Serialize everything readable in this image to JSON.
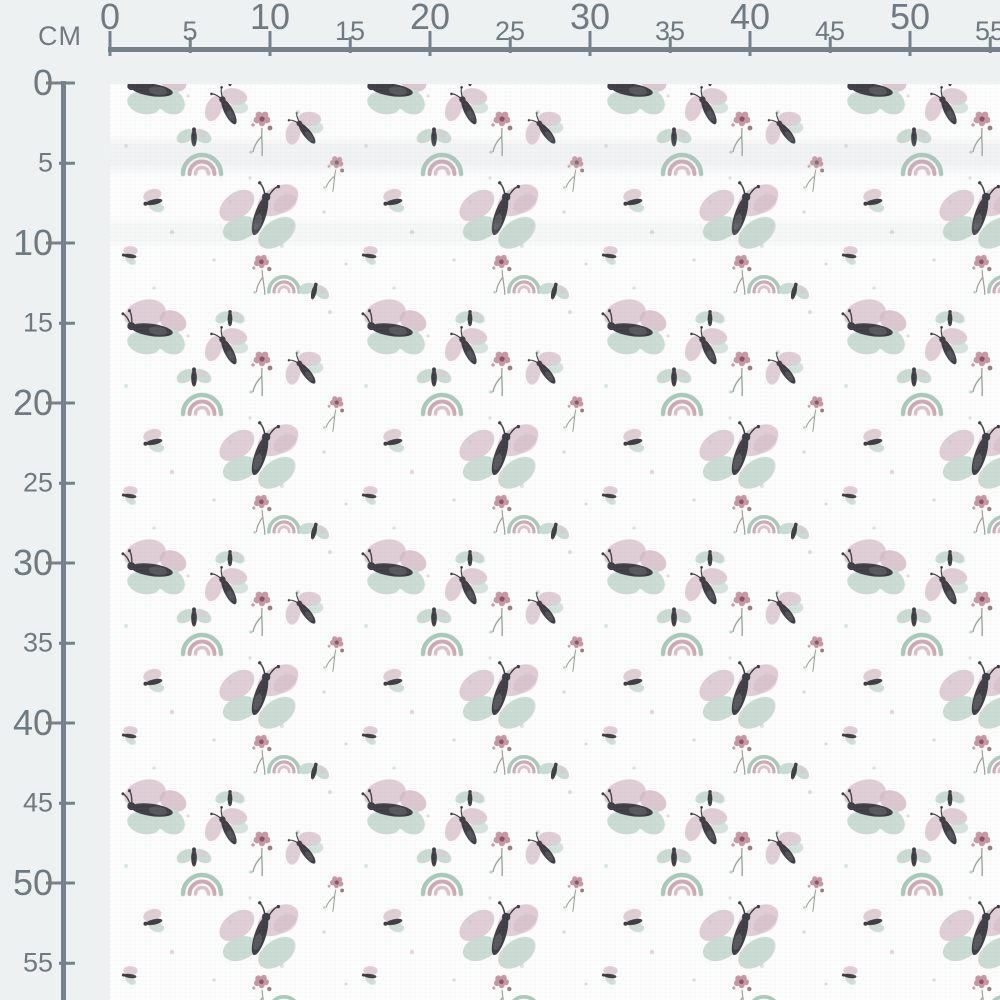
{
  "ruler": {
    "unit_label": "CM",
    "top": {
      "ticks": [
        0,
        5,
        10,
        15,
        20,
        25,
        30,
        35,
        40,
        45,
        50,
        55
      ]
    },
    "left": {
      "ticks": [
        0,
        5,
        10,
        15,
        20,
        25,
        30,
        35,
        40,
        45,
        50,
        55
      ]
    }
  },
  "fabric": {
    "base_color": "#fdfdfd",
    "motifs": [
      "butterfly-icon",
      "moth-icon",
      "small-butterfly-icon",
      "flower-icon",
      "rainbow-icon",
      "speckle-dot-icon"
    ]
  },
  "colors": {
    "background": "#edf1f2",
    "fabric": "#fdfdfd",
    "ruler_line": "#76828b",
    "ruler_text": "#6f7a82",
    "wing_pink": "#decbd4",
    "wing_pink_deep": "#d3b9c5",
    "wing_mint": "#c8dad1",
    "wing_mint_deep": "#b9d0c6",
    "body_dark": "#3e3e44",
    "body_light": "#75757c",
    "flower_pink": "#c798a4",
    "flower_deep": "#8a5763",
    "stem": "#9aa096",
    "rainbow_mint": "#a8cbbc",
    "rainbow_pink": "#cfa9b6",
    "rainbow_inner": "#dcc3cb",
    "dot_mint": "#b9d4c8",
    "dot_pink": "#d6bac4",
    "dot_gray": "#b9c0c2"
  }
}
